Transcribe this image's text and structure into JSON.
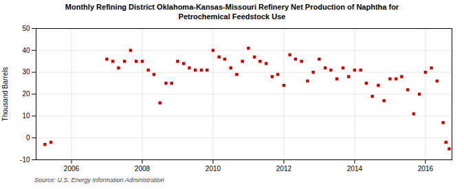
{
  "chart_data": {
    "type": "scatter",
    "title": "Monthly Refining District Oklahoma-Kansas-Missouri Refinery Net Production of Naphtha for\nPetrochemical Feedstock Use",
    "y_label": "Thousand Barrels",
    "annotations": [
      "Source: U.S. Energy Information Administration"
    ],
    "color": "#cc0000",
    "marker": "square",
    "grid": true,
    "xlim": [
      2005.0,
      2016.75
    ],
    "xticks": [
      2006,
      2008,
      2010,
      2012,
      2014,
      2016
    ],
    "ylim": [
      -10,
      50
    ],
    "yticks": [
      -10,
      0,
      10,
      20,
      30,
      40,
      50
    ],
    "x": [
      2005.25,
      2005.42,
      2007.0,
      2007.17,
      2007.33,
      2007.5,
      2007.67,
      2007.83,
      2008.0,
      2008.17,
      2008.33,
      2008.5,
      2008.67,
      2008.83,
      2009.0,
      2009.17,
      2009.33,
      2009.5,
      2009.67,
      2009.83,
      2010.0,
      2010.17,
      2010.33,
      2010.5,
      2010.67,
      2010.83,
      2011.0,
      2011.17,
      2011.33,
      2011.5,
      2011.67,
      2011.83,
      2012.0,
      2012.17,
      2012.33,
      2012.5,
      2012.67,
      2012.83,
      2013.0,
      2013.17,
      2013.33,
      2013.5,
      2013.67,
      2013.83,
      2014.0,
      2014.17,
      2014.33,
      2014.5,
      2014.67,
      2014.83,
      2015.0,
      2015.17,
      2015.33,
      2015.5,
      2015.67,
      2015.83,
      2016.0,
      2016.17,
      2016.33,
      2016.5,
      2016.58,
      2016.67
    ],
    "values": [
      -3,
      -2,
      36,
      35,
      32,
      35,
      40,
      35,
      35,
      31,
      29,
      16,
      25,
      25,
      35,
      34,
      32,
      31,
      31,
      31,
      40,
      37,
      36,
      32,
      29,
      35,
      41,
      37,
      35,
      34,
      28,
      29,
      24,
      38,
      36,
      35,
      26,
      30,
      36,
      32,
      31,
      27,
      32,
      28,
      31,
      31,
      25,
      19,
      24,
      17,
      27,
      27,
      28,
      22,
      11,
      20,
      30,
      32,
      26,
      7,
      -2,
      -5
    ]
  }
}
